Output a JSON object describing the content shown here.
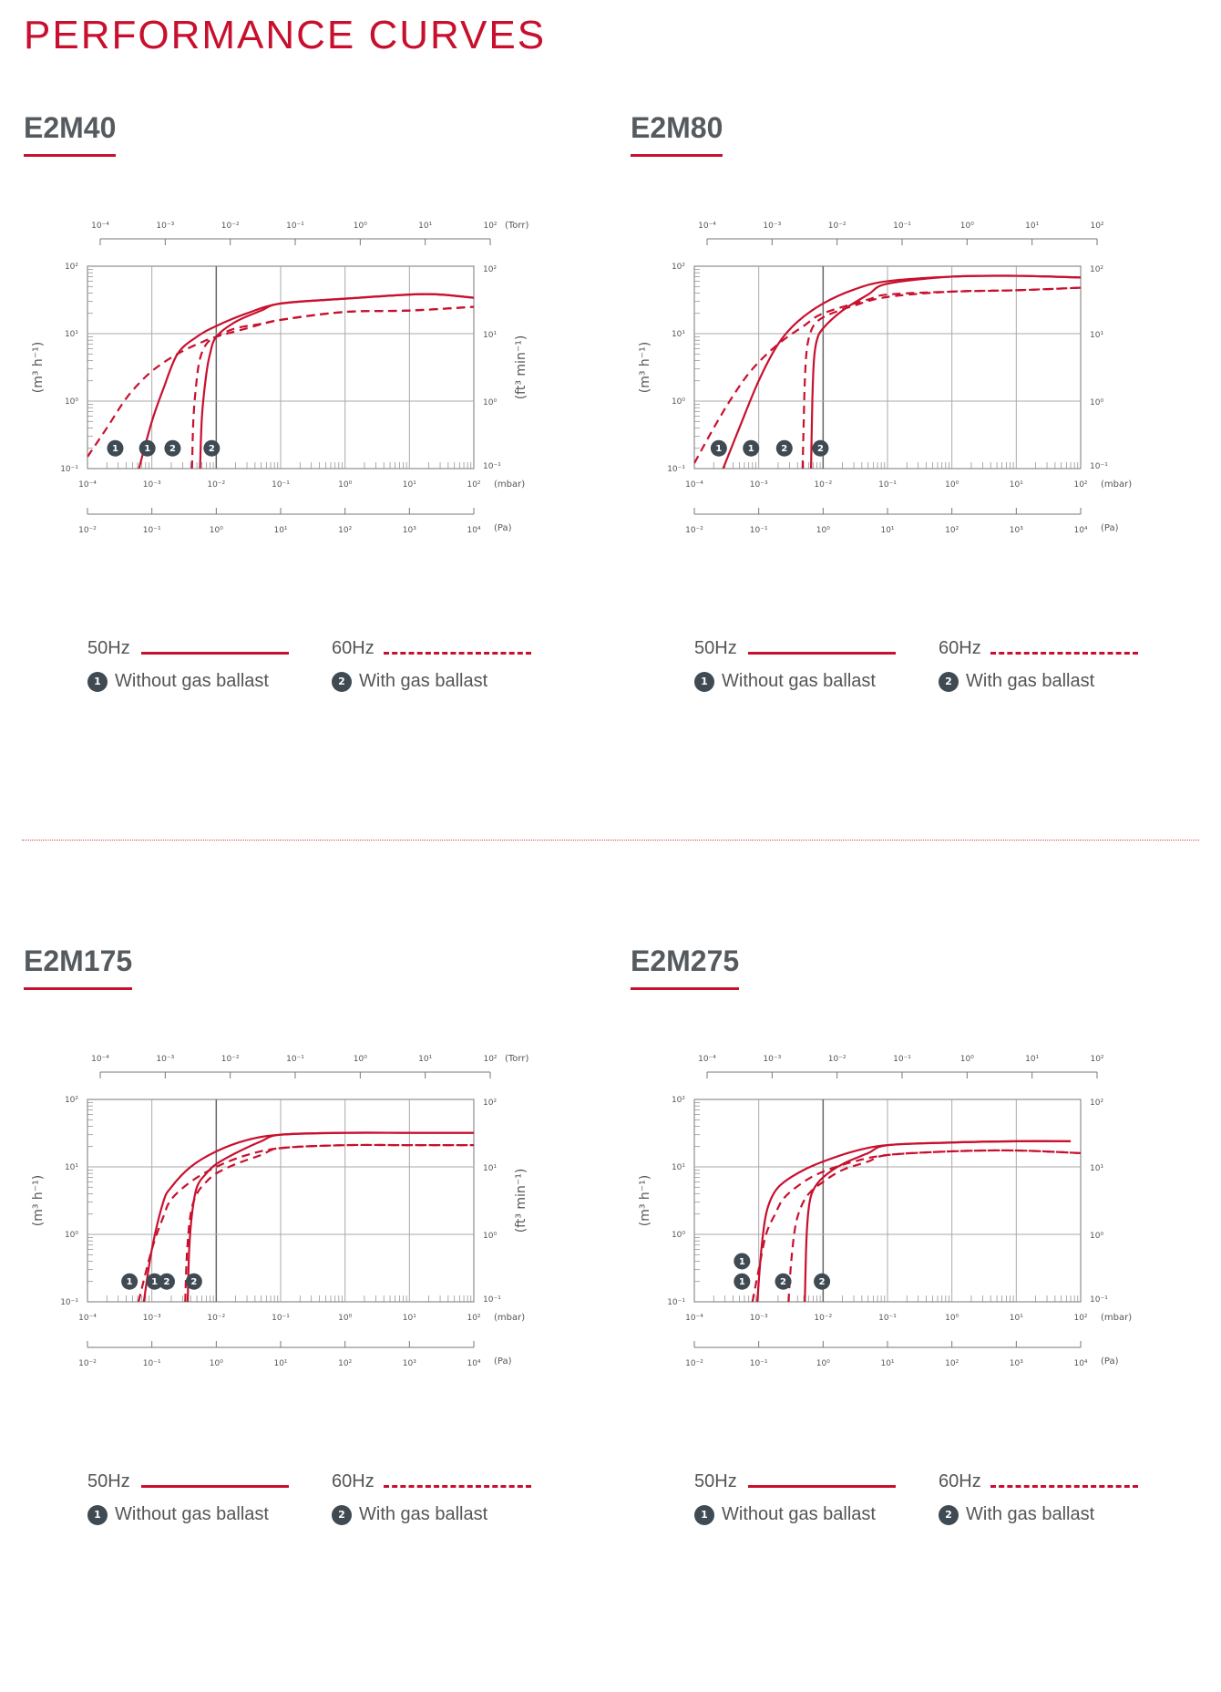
{
  "page": {
    "title": "PERFORMANCE CURVES"
  },
  "axes": {
    "torr_ticks": [
      "10⁻⁴",
      "10⁻³",
      "10⁻²",
      "10⁻¹",
      "10⁰",
      "10¹",
      "10²"
    ],
    "torr_unit": "(Torr)",
    "mbar_ticks": [
      "10⁻⁴",
      "10⁻³",
      "10⁻²",
      "10⁻¹",
      "10⁰",
      "10¹",
      "10²"
    ],
    "mbar_unit": "(mbar)",
    "pa_ticks": [
      "10⁻²",
      "10⁻¹",
      "10⁰",
      "10¹",
      "10²",
      "10³",
      "10⁴"
    ],
    "pa_unit": "(Pa)",
    "left_ticks": [
      "10²",
      "10¹",
      "10⁰",
      "10⁻¹"
    ],
    "right_ticks": [
      "10²",
      "10¹",
      "10⁰",
      "10⁻¹"
    ],
    "left_label": "(m³ h⁻¹)",
    "right_label": "(ft³ min⁻¹)"
  },
  "legend": {
    "hz50": "50Hz",
    "hz60": "60Hz",
    "without_num": "1",
    "without": "Without gas ballast",
    "with_num": "2",
    "with": "With gas ballast"
  },
  "colors": {
    "curve": "#c8102e",
    "badge": "#3f4a52",
    "grid": "#888888"
  },
  "chart_data": [
    {
      "type": "line",
      "title": "E2M40",
      "xlabel": "(mbar)",
      "ylabel": "(m³ h⁻¹)",
      "xscale": "log",
      "yscale": "log",
      "xlim": [
        0.0001,
        100
      ],
      "ylim": [
        0.1,
        100
      ],
      "show_right_label": true,
      "series": [
        {
          "frequency": "50Hz",
          "ballast": "1",
          "dash": false,
          "x": [
            0.00063,
            0.001,
            0.0015,
            0.0025,
            0.005,
            0.01,
            0.03,
            0.1,
            1,
            10,
            30,
            100
          ],
          "y": [
            0.1,
            0.5,
            1.5,
            5,
            9,
            13,
            20,
            28,
            33,
            38,
            38,
            34
          ]
        },
        {
          "frequency": "50Hz",
          "ballast": "2",
          "dash": false,
          "x": [
            0.0056,
            0.006,
            0.007,
            0.008,
            0.01,
            0.02,
            0.05,
            0.1,
            1,
            10,
            30,
            100
          ],
          "y": [
            0.1,
            0.6,
            2.5,
            5,
            9,
            15,
            22,
            28,
            33,
            38,
            38,
            34
          ]
        },
        {
          "frequency": "60Hz",
          "ballast": "1",
          "dash": true,
          "x": [
            0.0001,
            0.0002,
            0.0004,
            0.0008,
            0.0015,
            0.003,
            0.006,
            0.01,
            0.03,
            0.1,
            1,
            10,
            100
          ],
          "y": [
            0.15,
            0.4,
            1.1,
            2.3,
            3.7,
            5.5,
            7.5,
            9,
            12,
            16,
            21,
            22,
            25
          ]
        },
        {
          "frequency": "60Hz",
          "ballast": "2",
          "dash": true,
          "x": [
            0.0042,
            0.0044,
            0.0048,
            0.0055,
            0.007,
            0.01,
            0.02,
            0.05,
            0.1,
            1,
            10,
            100
          ],
          "y": [
            0.1,
            0.5,
            1.5,
            4,
            7,
            9,
            12,
            14,
            16,
            21,
            22,
            25
          ]
        }
      ],
      "markers": [
        {
          "label": "1",
          "x": 0.00027,
          "y": 0.2
        },
        {
          "label": "1",
          "x": 0.00085,
          "y": 0.2
        },
        {
          "label": "2",
          "x": 0.0021,
          "y": 0.2
        },
        {
          "label": "2",
          "x": 0.0085,
          "y": 0.2
        }
      ]
    },
    {
      "type": "line",
      "title": "E2M80",
      "xlabel": "(mbar)",
      "ylabel": "(m³ h⁻¹)",
      "xscale": "log",
      "yscale": "log",
      "xlim": [
        0.0001,
        100
      ],
      "ylim": [
        0.1,
        100
      ],
      "show_right_label": false,
      "series": [
        {
          "frequency": "50Hz",
          "ballast": "1",
          "dash": false,
          "x": [
            0.00028,
            0.0005,
            0.001,
            0.002,
            0.004,
            0.01,
            0.03,
            0.1,
            1,
            10,
            100
          ],
          "y": [
            0.1,
            0.4,
            2,
            7,
            15,
            28,
            45,
            60,
            70,
            72,
            68
          ]
        },
        {
          "frequency": "50Hz",
          "ballast": "2",
          "dash": false,
          "x": [
            0.0065,
            0.0068,
            0.0072,
            0.008,
            0.01,
            0.02,
            0.05,
            0.1,
            1,
            10,
            100
          ],
          "y": [
            0.1,
            1,
            4,
            8,
            12,
            22,
            38,
            55,
            70,
            72,
            68
          ]
        },
        {
          "frequency": "60Hz",
          "ballast": "1",
          "dash": true,
          "x": [
            0.0001,
            0.0002,
            0.0004,
            0.0008,
            0.002,
            0.005,
            0.01,
            0.05,
            0.1,
            1,
            10,
            100
          ],
          "y": [
            0.12,
            0.4,
            1.2,
            3,
            7,
            13,
            20,
            32,
            38,
            42,
            44,
            48
          ]
        },
        {
          "frequency": "60Hz",
          "ballast": "2",
          "dash": true,
          "x": [
            0.0048,
            0.005,
            0.0052,
            0.0056,
            0.0065,
            0.008,
            0.012,
            0.03,
            0.1,
            1,
            10,
            100
          ],
          "y": [
            0.1,
            0.5,
            2,
            6,
            11,
            15,
            19,
            26,
            35,
            42,
            44,
            48
          ]
        }
      ],
      "markers": [
        {
          "label": "1",
          "x": 0.00024,
          "y": 0.2
        },
        {
          "label": "1",
          "x": 0.00076,
          "y": 0.2
        },
        {
          "label": "2",
          "x": 0.0025,
          "y": 0.2
        },
        {
          "label": "2",
          "x": 0.0091,
          "y": 0.2
        }
      ]
    },
    {
      "type": "line",
      "title": "E2M175",
      "xlabel": "(mbar)",
      "ylabel": "(m³ h⁻¹)",
      "xscale": "log",
      "yscale": "log",
      "xlim": [
        0.0001,
        100
      ],
      "ylim": [
        0.1,
        100
      ],
      "show_right_label": true,
      "series": [
        {
          "frequency": "50Hz",
          "ballast": "1",
          "dash": false,
          "x": [
            0.00075,
            0.001,
            0.0015,
            0.002,
            0.004,
            0.01,
            0.03,
            0.1,
            1,
            10,
            100
          ],
          "y": [
            0.1,
            0.6,
            3,
            5,
            10,
            17,
            25,
            30,
            32,
            32,
            32
          ]
        },
        {
          "frequency": "50Hz",
          "ballast": "2",
          "dash": false,
          "x": [
            0.0036,
            0.0038,
            0.0042,
            0.005,
            0.007,
            0.01,
            0.02,
            0.05,
            0.1,
            1,
            10,
            100
          ],
          "y": [
            0.1,
            0.6,
            2,
            5,
            8,
            11,
            16,
            24,
            30,
            32,
            32,
            32
          ]
        },
        {
          "frequency": "60Hz",
          "ballast": "1",
          "dash": true,
          "x": [
            0.00062,
            0.001,
            0.0015,
            0.002,
            0.004,
            0.01,
            0.03,
            0.1,
            1,
            10,
            100
          ],
          "y": [
            0.1,
            0.6,
            1.8,
            3.3,
            6,
            10,
            15,
            19,
            21,
            21,
            21
          ]
        },
        {
          "frequency": "60Hz",
          "ballast": "2",
          "dash": true,
          "x": [
            0.0033,
            0.0035,
            0.004,
            0.005,
            0.007,
            0.01,
            0.02,
            0.05,
            0.1,
            1,
            10,
            100
          ],
          "y": [
            0.1,
            0.5,
            2,
            4,
            6,
            8,
            11,
            15,
            19,
            21,
            21,
            21
          ]
        }
      ],
      "markers": [
        {
          "label": "1",
          "x": 0.00045,
          "y": 0.2
        },
        {
          "label": "1",
          "x": 0.0011,
          "y": 0.2
        },
        {
          "label": "2",
          "x": 0.0017,
          "y": 0.2
        },
        {
          "label": "2",
          "x": 0.0045,
          "y": 0.2
        }
      ]
    },
    {
      "type": "line",
      "title": "E2M275",
      "xlabel": "(mbar)",
      "ylabel": "(m³ h⁻¹)",
      "xscale": "log",
      "yscale": "log",
      "xlim": [
        0.0001,
        100
      ],
      "ylim": [
        0.1,
        100
      ],
      "show_right_label": false,
      "series": [
        {
          "frequency": "50Hz",
          "ballast": "1",
          "dash": false,
          "x": [
            0.00095,
            0.0011,
            0.0013,
            0.0017,
            0.0025,
            0.005,
            0.01,
            0.03,
            0.1,
            1,
            10,
            70
          ],
          "y": [
            0.1,
            0.6,
            2,
            4,
            6,
            9,
            12,
            17,
            21,
            23,
            24,
            24
          ]
        },
        {
          "frequency": "50Hz",
          "ballast": "2",
          "dash": false,
          "x": [
            0.0052,
            0.0055,
            0.006,
            0.007,
            0.01,
            0.02,
            0.05,
            0.1,
            1,
            10,
            70
          ],
          "y": [
            0.1,
            0.8,
            2.5,
            4.5,
            7,
            11,
            16,
            21,
            23,
            24,
            24
          ]
        },
        {
          "frequency": "60Hz",
          "ballast": "1",
          "dash": true,
          "x": [
            0.0008,
            0.001,
            0.0013,
            0.0018,
            0.0025,
            0.005,
            0.01,
            0.03,
            0.1,
            1,
            10,
            100
          ],
          "y": [
            0.1,
            0.3,
            1,
            2,
            3.5,
            6,
            8.5,
            12,
            15,
            17,
            17.5,
            16
          ]
        },
        {
          "frequency": "60Hz",
          "ballast": "2",
          "dash": true,
          "x": [
            0.0029,
            0.0032,
            0.0037,
            0.0045,
            0.006,
            0.01,
            0.02,
            0.05,
            0.1,
            1,
            10,
            100
          ],
          "y": [
            0.1,
            0.4,
            1.3,
            2.5,
            4,
            6,
            9,
            12,
            15,
            17,
            17.5,
            16
          ]
        }
      ],
      "markers": [
        {
          "label": "1",
          "x": 0.00055,
          "y": 0.4
        },
        {
          "label": "1",
          "x": 0.00055,
          "y": 0.2
        },
        {
          "label": "2",
          "x": 0.0024,
          "y": 0.2
        },
        {
          "label": "2",
          "x": 0.0096,
          "y": 0.2
        }
      ]
    }
  ]
}
